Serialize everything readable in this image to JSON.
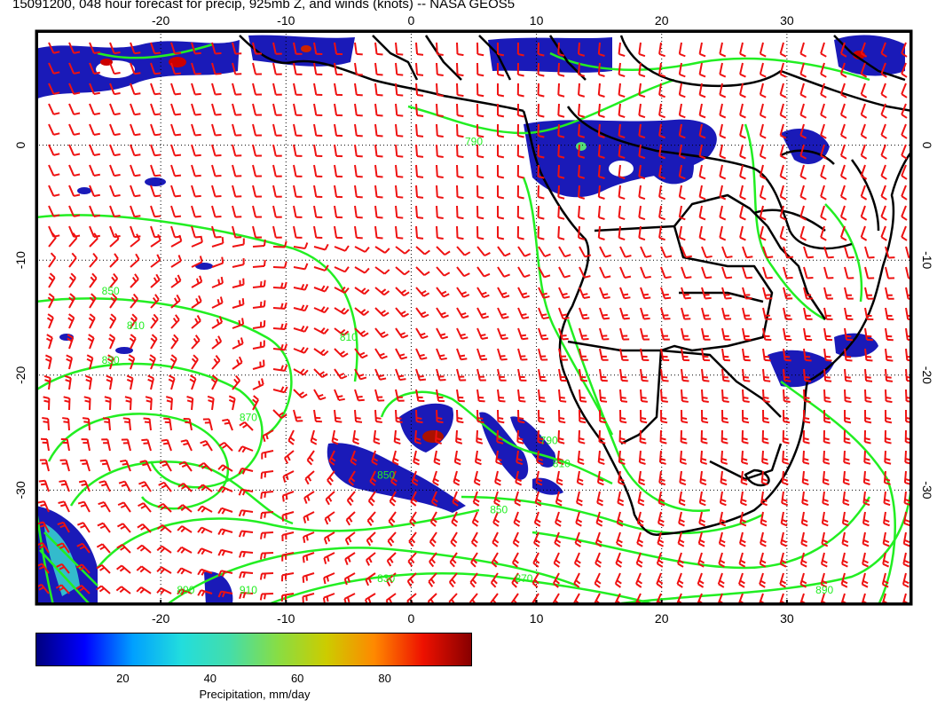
{
  "title": "15091200, 048 hour forecast for precip, 925mb Z, and winds (knots) -- NASA GEOS5",
  "map": {
    "lon_range": [
      -30,
      40
    ],
    "lat_range": [
      -40,
      10
    ],
    "lon_ticks": [
      -20,
      -10,
      0,
      10,
      20,
      30
    ],
    "lat_ticks": [
      0,
      -10,
      -20,
      -30
    ],
    "lon_tick_labels": [
      "-20",
      "-10",
      "0",
      "10",
      "20",
      "30"
    ],
    "lat_tick_labels": [
      "0",
      "-10",
      "-20",
      "-30"
    ],
    "gridlines": "dotted",
    "contour_color": "#22ee22",
    "barb_color": "#ee1111",
    "coast_color": "#000000",
    "contour_labels": [
      {
        "text": "810",
        "lon": -22,
        "lat": -16
      },
      {
        "text": "810",
        "lon": -5,
        "lat": -17
      },
      {
        "text": "830",
        "lon": -24,
        "lat": -19
      },
      {
        "text": "850",
        "lon": -24,
        "lat": -13
      },
      {
        "text": "870",
        "lon": -13,
        "lat": -24
      },
      {
        "text": "850",
        "lon": -2,
        "lat": -29
      },
      {
        "text": "850",
        "lon": 7,
        "lat": -32
      },
      {
        "text": "830",
        "lon": -2,
        "lat": -38
      },
      {
        "text": "870",
        "lon": 9,
        "lat": -38
      },
      {
        "text": "890",
        "lon": 33,
        "lat": -39
      },
      {
        "text": "910",
        "lon": -13,
        "lat": -39
      },
      {
        "text": "890",
        "lon": -18,
        "lat": -39
      },
      {
        "text": "790",
        "lon": 5,
        "lat": 0
      },
      {
        "text": "810",
        "lon": 12,
        "lat": -28
      },
      {
        "text": "790",
        "lon": 11,
        "lat": -26
      }
    ]
  },
  "colorbar": {
    "label": "Precipitation, mm/day",
    "ticks": [
      "20",
      "40",
      "60",
      "80"
    ],
    "tick_values": [
      20,
      40,
      60,
      80
    ],
    "range": [
      0,
      100
    ],
    "colormap": [
      "#00007f",
      "#0000ff",
      "#00a0ff",
      "#22dddd",
      "#44ddaa",
      "#88dd44",
      "#cccc00",
      "#ff8800",
      "#ee1100",
      "#880000"
    ]
  }
}
